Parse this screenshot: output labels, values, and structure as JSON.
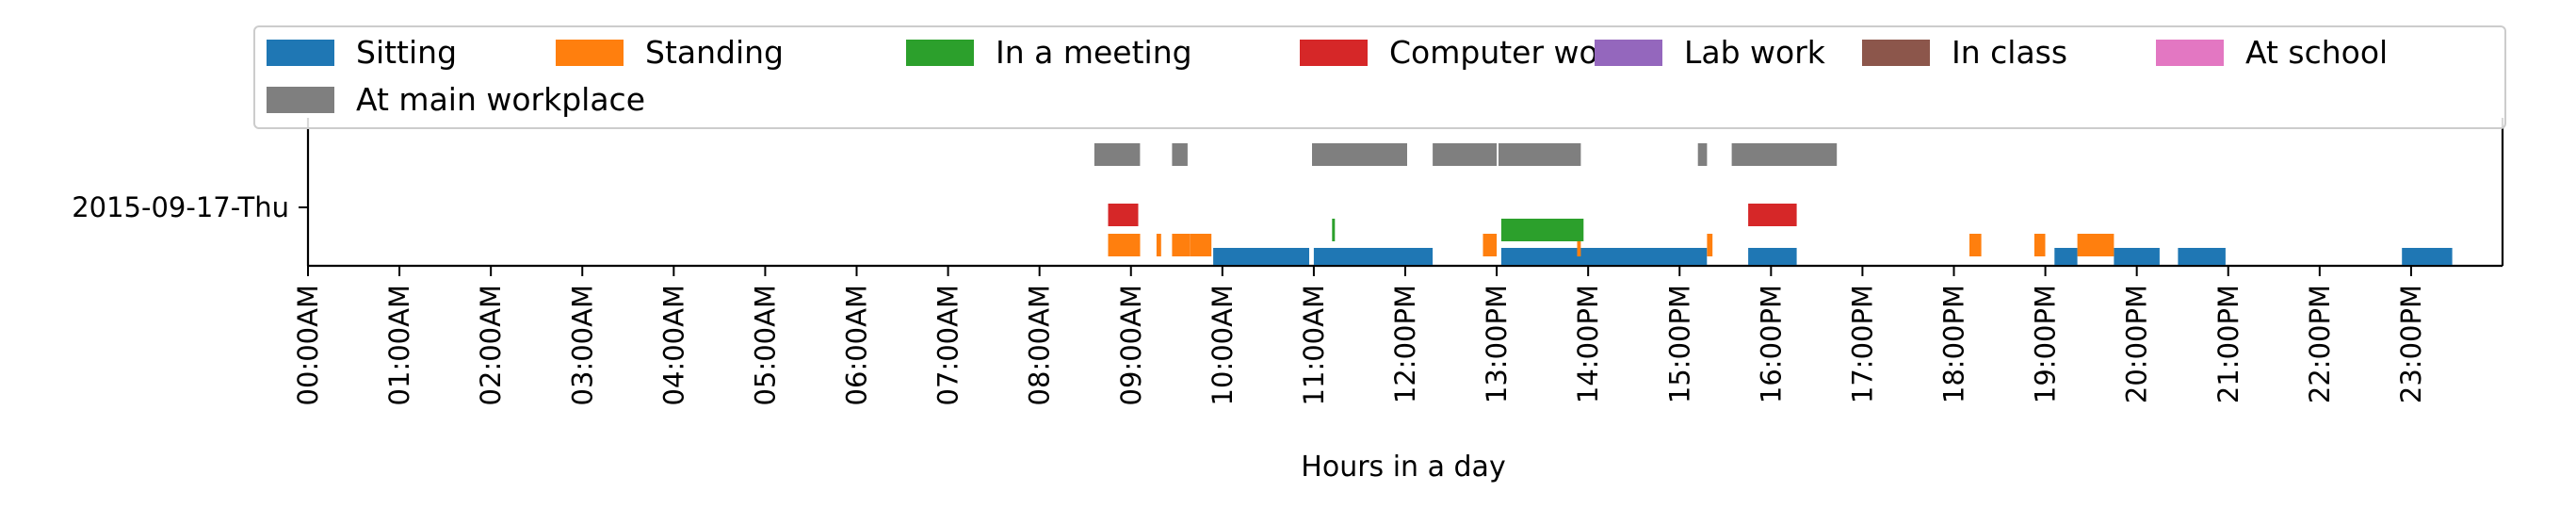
{
  "chart_data": {
    "type": "bar",
    "orientation": "horizontal-timeline",
    "xlabel": "Hours in a day",
    "ylabel": "",
    "title": "",
    "x_unit": "hour",
    "xlim": [
      0,
      24
    ],
    "x_ticks": [
      {
        "hour": 0,
        "label": "00:00AM"
      },
      {
        "hour": 1,
        "label": "01:00AM"
      },
      {
        "hour": 2,
        "label": "02:00AM"
      },
      {
        "hour": 3,
        "label": "03:00AM"
      },
      {
        "hour": 4,
        "label": "04:00AM"
      },
      {
        "hour": 5,
        "label": "05:00AM"
      },
      {
        "hour": 6,
        "label": "06:00AM"
      },
      {
        "hour": 7,
        "label": "07:00AM"
      },
      {
        "hour": 8,
        "label": "08:00AM"
      },
      {
        "hour": 9,
        "label": "09:00AM"
      },
      {
        "hour": 10,
        "label": "10:00AM"
      },
      {
        "hour": 11,
        "label": "11:00AM"
      },
      {
        "hour": 12,
        "label": "12:00PM"
      },
      {
        "hour": 13,
        "label": "13:00PM"
      },
      {
        "hour": 14,
        "label": "14:00PM"
      },
      {
        "hour": 15,
        "label": "15:00PM"
      },
      {
        "hour": 16,
        "label": "16:00PM"
      },
      {
        "hour": 17,
        "label": "17:00PM"
      },
      {
        "hour": 18,
        "label": "18:00PM"
      },
      {
        "hour": 19,
        "label": "19:00PM"
      },
      {
        "hour": 20,
        "label": "20:00PM"
      },
      {
        "hour": 21,
        "label": "21:00PM"
      },
      {
        "hour": 22,
        "label": "22:00PM"
      },
      {
        "hour": 23,
        "label": "23:00PM"
      }
    ],
    "y_categories": [
      "2015-09-17-Thu"
    ],
    "legend": {
      "placement": "top",
      "columns": 7,
      "entries": [
        "Sitting",
        "Standing",
        "In a meeting",
        "Computer work",
        "Lab work",
        "In class",
        "At school",
        "At main workplace"
      ]
    },
    "series": [
      {
        "name": "Sitting",
        "color": "#1f77b4",
        "lane": 0,
        "intervals": [
          [
            9.9,
            10.95
          ],
          [
            11.0,
            12.3
          ],
          [
            13.05,
            15.3
          ],
          [
            15.75,
            16.28
          ],
          [
            19.1,
            19.35
          ],
          [
            19.75,
            20.25
          ],
          [
            20.45,
            20.97
          ],
          [
            22.9,
            23.45
          ]
        ]
      },
      {
        "name": "Standing",
        "color": "#ff7f0e",
        "lane": 1,
        "intervals": [
          [
            8.75,
            9.1
          ],
          [
            9.28,
            9.33
          ],
          [
            9.45,
            9.65
          ],
          [
            9.65,
            9.88
          ],
          [
            12.85,
            13.0
          ],
          [
            13.88,
            13.92
          ],
          [
            15.3,
            15.36
          ],
          [
            18.17,
            18.3
          ],
          [
            18.88,
            19.0
          ],
          [
            19.35,
            19.75
          ]
        ]
      },
      {
        "name": "In a meeting",
        "color": "#2ca02c",
        "lane": 2,
        "intervals": [
          [
            11.2,
            11.23
          ],
          [
            13.05,
            13.95
          ]
        ]
      },
      {
        "name": "Computer work",
        "color": "#d62728",
        "lane": 3,
        "intervals": [
          [
            8.75,
            9.08
          ],
          [
            15.75,
            16.28
          ]
        ]
      },
      {
        "name": "Lab work",
        "color": "#9467bd",
        "lane": 4,
        "intervals": []
      },
      {
        "name": "In class",
        "color": "#8c564b",
        "lane": 5,
        "intervals": []
      },
      {
        "name": "At school",
        "color": "#e377c2",
        "lane": 6,
        "intervals": []
      },
      {
        "name": "At main workplace",
        "color": "#7f7f7f",
        "lane": 7,
        "intervals": [
          [
            8.6,
            9.1
          ],
          [
            9.45,
            9.62
          ],
          [
            10.98,
            12.02
          ],
          [
            12.3,
            13.0
          ],
          [
            13.02,
            13.92
          ],
          [
            15.2,
            15.3
          ],
          [
            15.57,
            16.72
          ]
        ]
      }
    ]
  }
}
